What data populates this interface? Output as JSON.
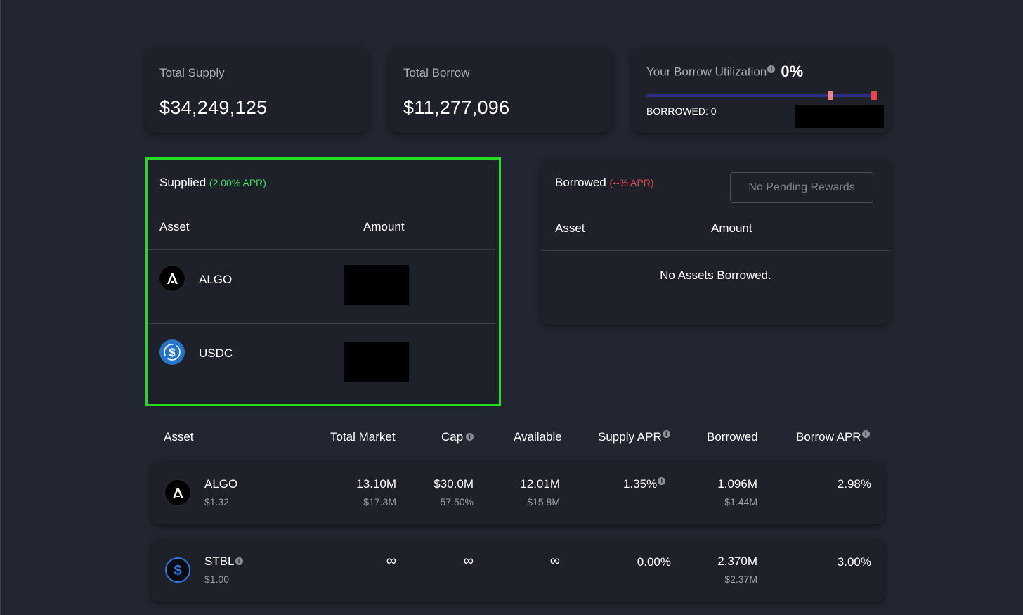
{
  "stats": {
    "total_supply_label": "Total Supply",
    "total_supply_value": "$34,249,125",
    "total_borrow_label": "Total Borrow",
    "total_borrow_value": "$11,277,096",
    "utilization_label": "Your Borrow Utilization",
    "utilization_info": "i",
    "utilization_value": "0%",
    "utilization_fraction": 0.0,
    "borrowed_label": "BORROWED: 0"
  },
  "supplied": {
    "title": "Supplied",
    "apr": "(2.00% APR)",
    "col_asset": "Asset",
    "col_amount": "Amount",
    "rows": [
      {
        "asset": "ALGO",
        "icon": "algo-icon"
      },
      {
        "asset": "USDC",
        "icon": "usdc-icon"
      }
    ]
  },
  "borrowed": {
    "title": "Borrowed",
    "apr": "(--% APR)",
    "pending_button": "No Pending Rewards",
    "col_asset": "Asset",
    "col_amount": "Amount",
    "empty": "No Assets Borrowed."
  },
  "markets": {
    "headers": {
      "asset": "Asset",
      "total_market": "Total Market",
      "cap": "Cap",
      "available": "Available",
      "supply_apr": "Supply APR",
      "borrowed": "Borrowed",
      "borrow_apr": "Borrow APR",
      "info": "i"
    },
    "rows": [
      {
        "asset": "ALGO",
        "price": "$1.32",
        "total_market": "13.10M",
        "total_market_usd": "$17.3M",
        "cap": "$30.0M",
        "cap_pct": "57.50%",
        "available": "12.01M",
        "available_usd": "$15.8M",
        "supply_apr": "1.35%",
        "borrowed": "1.096M",
        "borrowed_usd": "$1.44M",
        "borrow_apr": "2.98%"
      },
      {
        "asset": "STBL",
        "price": "$1.00",
        "total_market": "∞",
        "cap": "∞",
        "available": "∞",
        "supply_apr": "0.00%",
        "borrowed": "2.370M",
        "borrowed_usd": "$2.37M",
        "borrow_apr": "3.00%"
      }
    ]
  },
  "colors": {
    "background": "#222630",
    "card": "#1e2129",
    "highlight": "#22dd22",
    "apr_green": "#3ddc63",
    "apr_red": "#e8474c",
    "track": "#2c3087",
    "marker_pink": "#e8868c",
    "marker_red": "#e8474c",
    "usdc_blue": "#2775ca"
  }
}
